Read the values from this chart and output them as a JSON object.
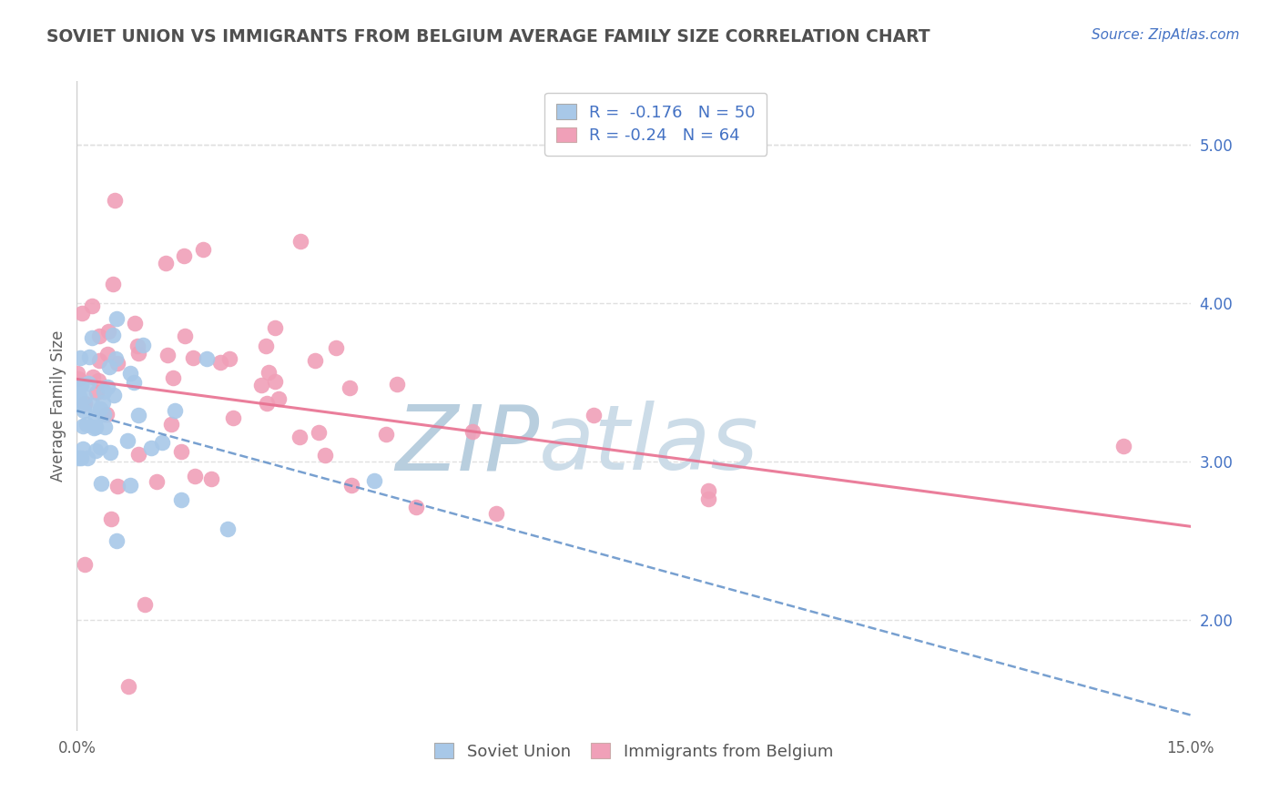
{
  "title": "SOVIET UNION VS IMMIGRANTS FROM BELGIUM AVERAGE FAMILY SIZE CORRELATION CHART",
  "source": "Source: ZipAtlas.com",
  "ylabel": "Average Family Size",
  "yticks": [
    2.0,
    3.0,
    4.0,
    5.0
  ],
  "xlim": [
    0.0,
    15.0
  ],
  "ylim": [
    1.3,
    5.4
  ],
  "blue_R": -0.176,
  "blue_N": 50,
  "pink_R": -0.24,
  "pink_N": 64,
  "blue_color": "#a8c8e8",
  "blue_edge_color": "#7aaad0",
  "blue_line_color": "#6090c8",
  "pink_color": "#f0a0b8",
  "pink_edge_color": "#e07090",
  "pink_line_color": "#e8607888",
  "watermark_zip_color": "#b0c8e0",
  "watermark_atlas_color": "#c8daea",
  "background_color": "#ffffff",
  "grid_color": "#e0e0e0",
  "title_color": "#505050",
  "axis_label_color": "#606060",
  "right_tick_color": "#4472c4",
  "legend_text_color": "#4472c4",
  "blue_intercept": 3.32,
  "blue_slope": -0.128,
  "pink_intercept": 3.52,
  "pink_slope": -0.062
}
